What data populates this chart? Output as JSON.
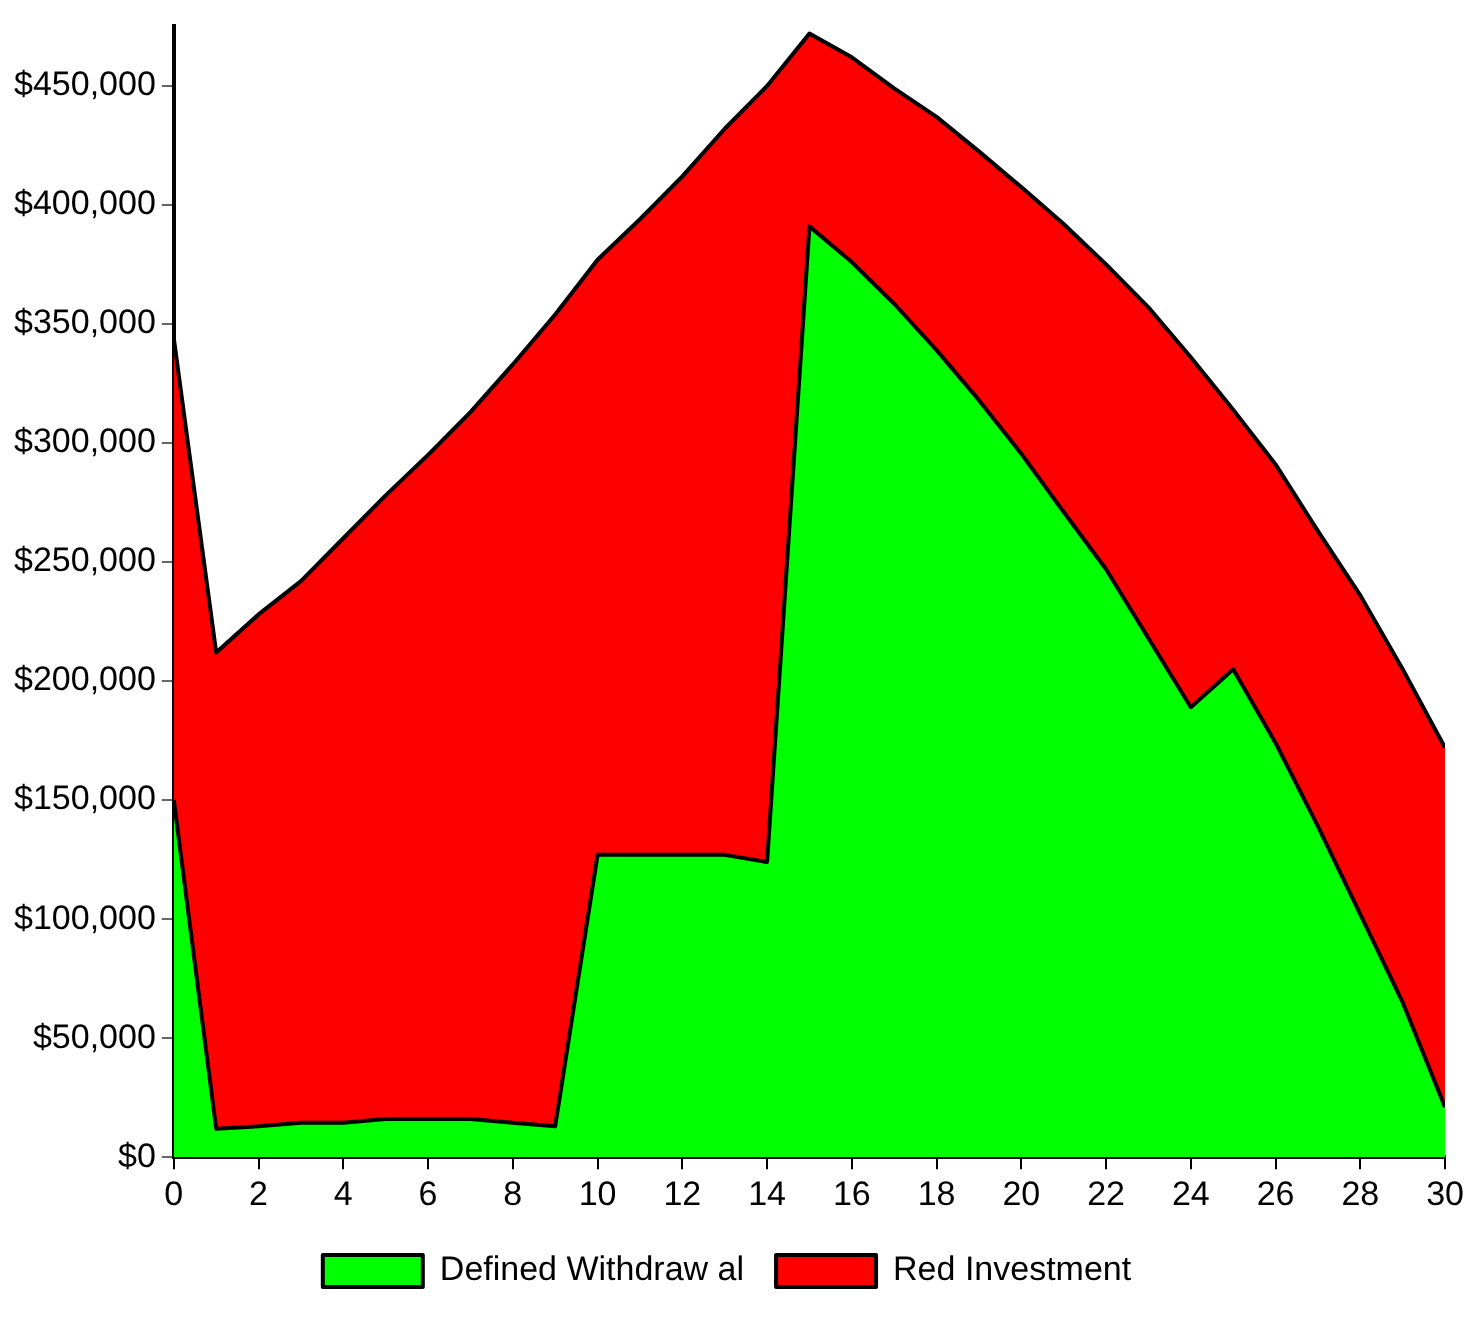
{
  "chart_data": {
    "type": "area",
    "stacked": true,
    "x": [
      0,
      1,
      2,
      3,
      4,
      5,
      6,
      7,
      8,
      9,
      10,
      11,
      12,
      13,
      14,
      15,
      16,
      17,
      18,
      19,
      20,
      21,
      22,
      23,
      24,
      25,
      26,
      27,
      28,
      29,
      30
    ],
    "series": [
      {
        "name": "Defined Withdraw al",
        "color": "#00ff00",
        "values": [
          150000,
          12000,
          13000,
          14500,
          14500,
          16000,
          16000,
          16000,
          14500,
          13000,
          127000,
          127000,
          127000,
          127000,
          124000,
          391000,
          376000,
          358500,
          339000,
          318000,
          295500,
          271000,
          247000,
          218000,
          189000,
          205000,
          174000,
          139000,
          102000,
          65000,
          21000
        ]
      },
      {
        "name": "Red Investment",
        "color": "#ff0000",
        "values": [
          194000,
          200000,
          215000,
          227500,
          245500,
          262000,
          279000,
          297000,
          318500,
          341000,
          250000,
          267000,
          285000,
          305000,
          326000,
          81000,
          86000,
          90500,
          98000,
          104500,
          112000,
          121000,
          128000,
          139000,
          147000,
          109000,
          117000,
          124000,
          134000,
          140000,
          151000
        ]
      }
    ],
    "xlim": [
      0,
      30
    ],
    "xticks": [
      0,
      2,
      4,
      6,
      8,
      10,
      12,
      14,
      16,
      18,
      20,
      22,
      24,
      26,
      28,
      30
    ],
    "ylim": [
      0,
      475000
    ],
    "yticks": [
      {
        "value": 0,
        "label": "$0"
      },
      {
        "value": 50000,
        "label": "$50,000"
      },
      {
        "value": 100000,
        "label": "$100,000"
      },
      {
        "value": 150000,
        "label": "$150,000"
      },
      {
        "value": 200000,
        "label": "$200,000"
      },
      {
        "value": 250000,
        "label": "$250,000"
      },
      {
        "value": 300000,
        "label": "$300,000"
      },
      {
        "value": 350000,
        "label": "$350,000"
      },
      {
        "value": 400000,
        "label": "$400,000"
      },
      {
        "value": 450000,
        "label": "$450,000"
      }
    ],
    "grid": false,
    "legend": "bottom",
    "marker": "none"
  }
}
